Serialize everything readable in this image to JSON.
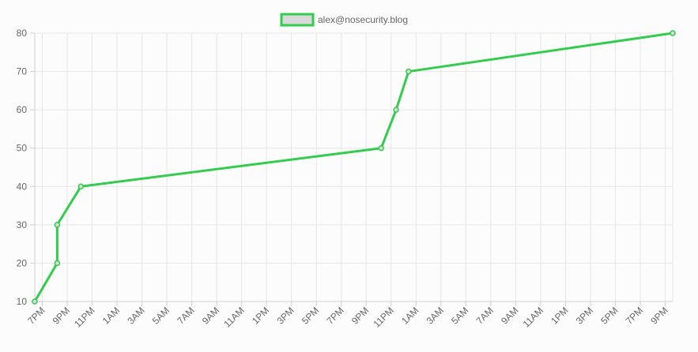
{
  "chart_data": {
    "type": "line",
    "title": "",
    "xlabel": "",
    "ylabel": "",
    "legend_position": "top",
    "grid": true,
    "ylim": [
      10,
      80
    ],
    "y_ticks": [
      "10",
      "20",
      "30",
      "40",
      "50",
      "60",
      "70",
      "80"
    ],
    "x_ticks": [
      "7PM",
      "9PM",
      "11PM",
      "1AM",
      "3AM",
      "5AM",
      "7AM",
      "9AM",
      "11AM",
      "1PM",
      "3PM",
      "5PM",
      "7PM",
      "9PM",
      "11PM",
      "1AM",
      "3AM",
      "5AM",
      "7AM",
      "9AM",
      "11AM",
      "1PM",
      "3PM",
      "5PM",
      "7PM",
      "9PM"
    ],
    "x_tick_hours": [
      19,
      21,
      23,
      25,
      27,
      29,
      31,
      33,
      35,
      37,
      39,
      41,
      43,
      45,
      47,
      49,
      51,
      53,
      55,
      57,
      59,
      61,
      63,
      65,
      67,
      69
    ],
    "xlim_hours": [
      18.4,
      69.6
    ],
    "series": [
      {
        "name": "alex@nosecurity.blog",
        "color": "#33cc4d",
        "fill": "#d9d9d9",
        "x_hours": [
          18.4,
          20.2,
          20.2,
          22.1,
          46.2,
          47.4,
          48.4,
          69.6
        ],
        "values": [
          10,
          20,
          30,
          40,
          50,
          60,
          70,
          80
        ]
      }
    ]
  }
}
